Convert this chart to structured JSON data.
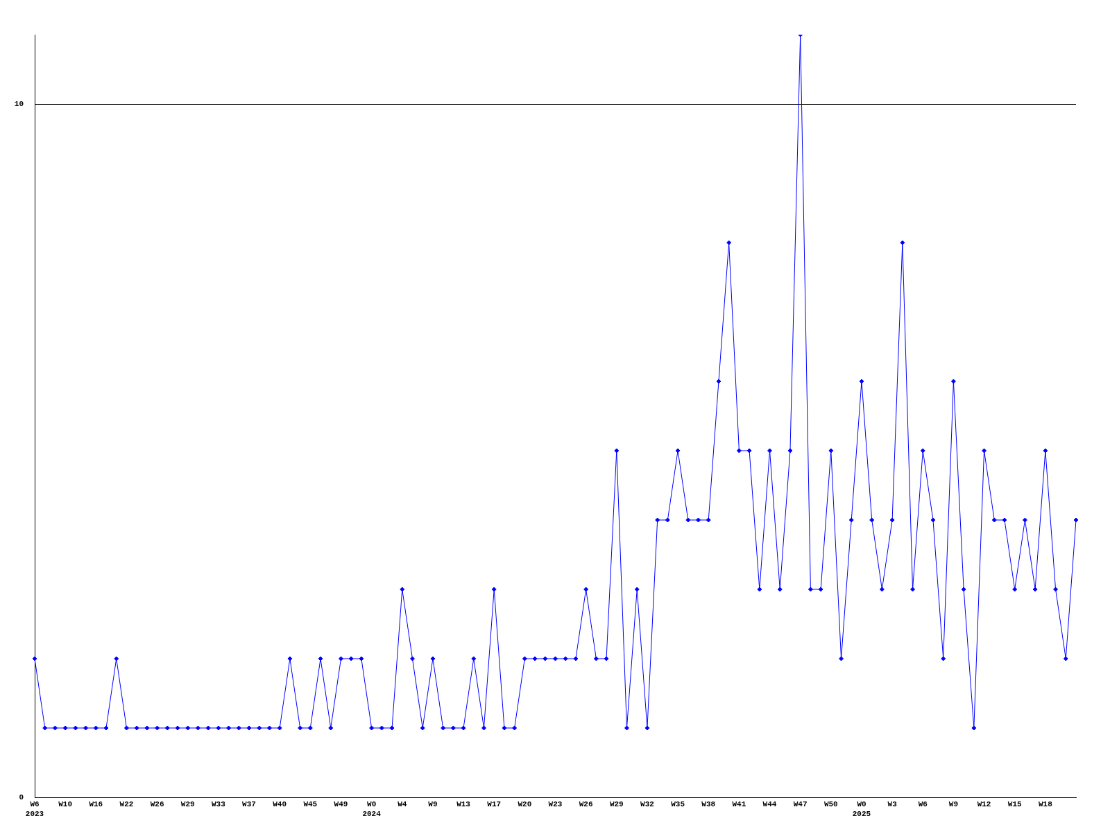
{
  "chart_data": {
    "type": "line",
    "categories": [
      "W6\n2023",
      null,
      null,
      "W10",
      null,
      null,
      "W16",
      null,
      null,
      "W22",
      null,
      null,
      "W26",
      null,
      null,
      "W29",
      null,
      null,
      "W33",
      null,
      null,
      "W37",
      null,
      null,
      "W40",
      null,
      null,
      "W45",
      null,
      null,
      "W49",
      null,
      null,
      "W0\n2024",
      null,
      null,
      "W4",
      null,
      null,
      "W9",
      null,
      null,
      "W13",
      null,
      null,
      "W17",
      null,
      null,
      "W20",
      null,
      null,
      "W23",
      null,
      null,
      "W26",
      null,
      null,
      "W29",
      null,
      null,
      "W32",
      null,
      null,
      "W35",
      null,
      null,
      "W38",
      null,
      null,
      "W41",
      null,
      null,
      "W44",
      null,
      null,
      "W47",
      null,
      null,
      "W50",
      null,
      null,
      "W0\n2025",
      null,
      null,
      "W3",
      null,
      null,
      "W6",
      null,
      null,
      "W9",
      null,
      null,
      "W12",
      null,
      null,
      "W15",
      null,
      null,
      "W18",
      null,
      null,
      null
    ],
    "series": [
      {
        "color": "#0000ff",
        "values": [
          2,
          1,
          1,
          1,
          1,
          1,
          1,
          1,
          2,
          1,
          1,
          1,
          1,
          1,
          1,
          1,
          1,
          1,
          1,
          1,
          1,
          1,
          1,
          1,
          1,
          2,
          1,
          1,
          2,
          1,
          2,
          2,
          2,
          1,
          1,
          1,
          3,
          2,
          1,
          2,
          1,
          1,
          1,
          2,
          1,
          3,
          1,
          1,
          2,
          2,
          2,
          2,
          2,
          2,
          3,
          2,
          2,
          5,
          1,
          3,
          1,
          4,
          4,
          5,
          4,
          4,
          4,
          6,
          8,
          5,
          5,
          3,
          5,
          3,
          5,
          11,
          3,
          3,
          5,
          2,
          4,
          6,
          4,
          3,
          4,
          8,
          3,
          5,
          4,
          2,
          6,
          3,
          1,
          5,
          4,
          4,
          3,
          4,
          3,
          5,
          3,
          2,
          4
        ]
      }
    ],
    "ylim": [
      0,
      11
    ],
    "yticks": [
      0,
      10
    ],
    "grid": "y",
    "legend": false,
    "marker": "diamond",
    "line_style": "solid"
  }
}
